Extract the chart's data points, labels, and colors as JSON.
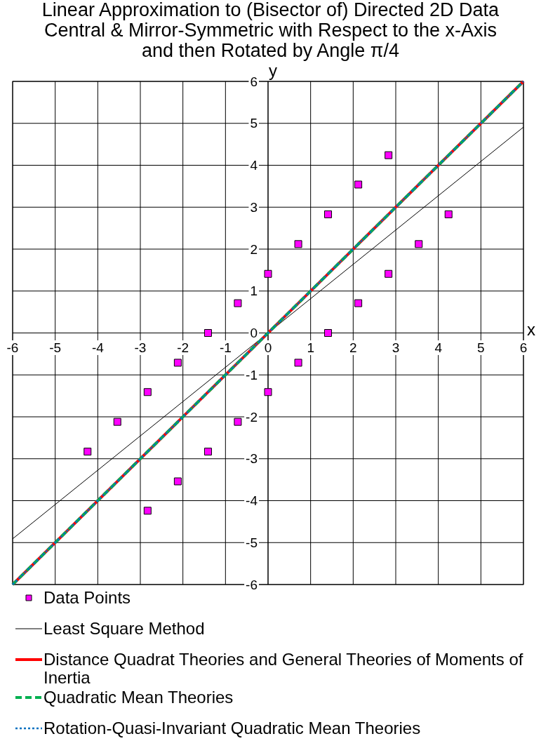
{
  "chart_data": {
    "type": "line",
    "title": "Linear Approximation to (Bisector of) Directed 2D Data\nCentral & Mirror-Symmetric with Respect to the x-Axis\nand then Rotated by Angle π/4",
    "xlabel": "x",
    "ylabel": "y",
    "xlim": [
      -6,
      6
    ],
    "ylim": [
      -6,
      6
    ],
    "xticks": [
      -6,
      -5,
      -4,
      -3,
      -2,
      -1,
      0,
      1,
      2,
      3,
      4,
      5,
      6
    ],
    "yticks": [
      -6,
      -5,
      -4,
      -3,
      -2,
      -1,
      0,
      1,
      2,
      3,
      4,
      5,
      6
    ],
    "grid": true,
    "legend": "bottom",
    "series": [
      {
        "name": "Data Points",
        "type": "scatter",
        "color": "#ff00ff",
        "marker": "square",
        "x": [
          -4.24,
          -3.54,
          -2.83,
          -2.12,
          -1.41,
          -0.71,
          0,
          0.71,
          1.41,
          2.12,
          2.83,
          -2.83,
          -2.12,
          -1.41,
          -0.71,
          0,
          0.71,
          1.41,
          2.12,
          2.83,
          3.54,
          4.24
        ],
        "values": [
          -2.83,
          -2.12,
          -1.41,
          -0.71,
          0,
          0.71,
          1.41,
          2.12,
          2.83,
          3.54,
          4.24,
          -4.24,
          -3.54,
          -2.83,
          -2.12,
          -1.41,
          -0.71,
          0,
          0.71,
          1.41,
          2.12,
          2.83
        ]
      },
      {
        "name": "Least Square Method",
        "type": "line",
        "color": "#000000",
        "line_style": "solid",
        "x": [
          -6,
          6
        ],
        "values": [
          -4.91,
          4.91
        ]
      },
      {
        "name": "Distance Quadrat Theories and General Theories of Moments of Inertia",
        "type": "line",
        "color": "#ff0000",
        "line_style": "solid",
        "x": [
          -6,
          6
        ],
        "values": [
          -6,
          6
        ]
      },
      {
        "name": "Quadratic Mean Theories",
        "type": "line",
        "color": "#00b050",
        "line_style": "dashed",
        "x": [
          -6,
          6
        ],
        "values": [
          -6,
          6
        ]
      },
      {
        "name": "Rotation-Quasi-Invariant Quadratic Mean Theories",
        "type": "line",
        "color": "#0070c0",
        "line_style": "dotted",
        "x": [
          -6,
          6
        ],
        "values": [
          -6,
          6
        ]
      }
    ]
  }
}
